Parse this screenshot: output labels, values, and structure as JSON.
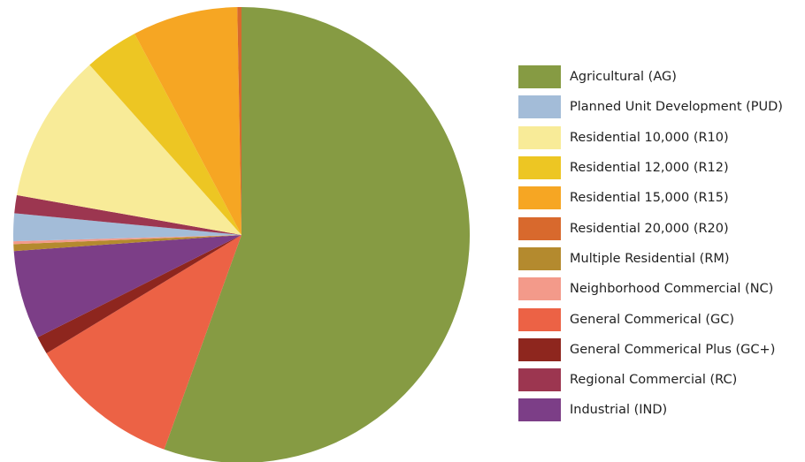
{
  "chart_data": {
    "type": "pie",
    "title": "",
    "legend_position": "right",
    "slices": [
      {
        "label": "Agricultural (AG)",
        "value": 56.5,
        "color": "#869b43"
      },
      {
        "label": "General Commerical (GC)",
        "value": 11.0,
        "color": "#ec6245"
      },
      {
        "label": "General Commerical Plus (GC+)",
        "value": 1.3,
        "color": "#8e261e"
      },
      {
        "label": "Industrial (IND)",
        "value": 6.4,
        "color": "#7c3e87"
      },
      {
        "label": "Multiple Residential (RM)",
        "value": 0.5,
        "color": "#b48a2e"
      },
      {
        "label": "Neighborhood Commercial (NC)",
        "value": 0.2,
        "color": "#f39a8a"
      },
      {
        "label": "Planned Unit Development (PUD)",
        "value": 2.0,
        "color": "#a3bcd8"
      },
      {
        "label": "Regional Commercial (RC)",
        "value": 1.3,
        "color": "#9c3650"
      },
      {
        "label": "Residential 10,000 (R10)",
        "value": 10.8,
        "color": "#f8eb98"
      },
      {
        "label": "Residential 12,000 (R12)",
        "value": 3.9,
        "color": "#edc623"
      },
      {
        "label": "Residential 15,000 (R15)",
        "value": 7.6,
        "color": "#f6a623"
      },
      {
        "label": "Residential 20,000 (R20)",
        "value": 0.3,
        "color": "#d8692d"
      }
    ],
    "legend": [
      {
        "label": "Agricultural (AG)",
        "color": "#869b43"
      },
      {
        "label": "Planned Unit Development (PUD)",
        "color": "#a3bcd8"
      },
      {
        "label": "Residential 10,000 (R10)",
        "color": "#f8eb98"
      },
      {
        "label": "Residential 12,000 (R12)",
        "color": "#edc623"
      },
      {
        "label": "Residential 15,000 (R15)",
        "color": "#f6a623"
      },
      {
        "label": "Residential 20,000 (R20)",
        "color": "#d8692d"
      },
      {
        "label": "Multiple Residential (RM)",
        "color": "#b48a2e"
      },
      {
        "label": "Neighborhood Commercial (NC)",
        "color": "#f39a8a"
      },
      {
        "label": "General Commerical (GC)",
        "color": "#ec6245"
      },
      {
        "label": "General Commerical Plus (GC+)",
        "color": "#8e261e"
      },
      {
        "label": "Regional Commercial (RC)",
        "color": "#9c3650"
      },
      {
        "label": "Industrial (IND)",
        "color": "#7c3e87"
      }
    ]
  }
}
